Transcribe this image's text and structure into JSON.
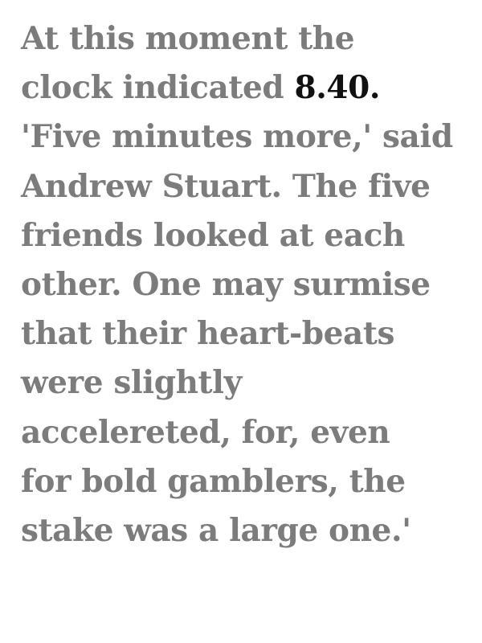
{
  "passage": {
    "lines": [
      {
        "before": "At this moment the"
      },
      {
        "before": "clock indicated ",
        "highlight": "8.40."
      },
      {
        "before": "'Five minutes more,' said"
      },
      {
        "before": "Andrew Stuart. The five"
      },
      {
        "before": "friends looked at each"
      },
      {
        "before": "other. One may surmise"
      },
      {
        "before": "that their heart-beats"
      },
      {
        "before": "were slightly"
      },
      {
        "before": "accelereted, for, even"
      },
      {
        "before": "for bold gamblers, the"
      },
      {
        "before": "stake was a large one.'"
      }
    ]
  },
  "colors": {
    "text": "#7c7c7c",
    "highlight": "#111111",
    "background": "#ffffff"
  }
}
